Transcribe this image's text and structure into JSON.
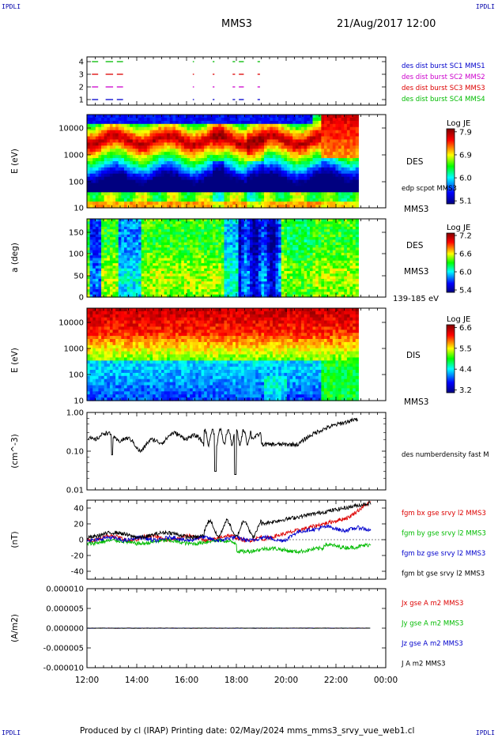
{
  "corners": {
    "top_left": "IPDLI",
    "top_right": "IPDLI",
    "bottom_left": "IPDLI",
    "bottom_right": "IPDLI"
  },
  "header": {
    "spacecraft": "MMS3",
    "datetime": "21/Aug/2017 12:00"
  },
  "footer": "Produced by cl (IRAP)   Printing date: 02/May/2024   mms_mms3_srvy_vue_web1.cl",
  "colors": {
    "sc1": "#0000cc",
    "sc2": "#cc00cc",
    "sc3": "#dd0000",
    "sc4": "#00bb00",
    "black": "#000000"
  },
  "chart_data": [
    {
      "type": "line",
      "id": "burst",
      "yticks": [
        "4",
        "3",
        "2",
        "1"
      ],
      "legend": [
        {
          "label": "des dist burst SC1 MMS1",
          "color": "#0000cc"
        },
        {
          "label": "des dist burst SC2 MMS2",
          "color": "#cc00cc"
        },
        {
          "label": "des dist burst SC3 MMS3",
          "color": "#dd0000"
        },
        {
          "label": "des dist burst SC4 MMS4",
          "color": "#00bb00"
        }
      ],
      "intervals_hours": [
        [
          12.2,
          12.45
        ],
        [
          12.75,
          13.05
        ],
        [
          13.2,
          13.45
        ],
        [
          16.25,
          16.3
        ],
        [
          17.05,
          17.12
        ],
        [
          17.85,
          17.95
        ],
        [
          18.1,
          18.3
        ],
        [
          18.85,
          18.95
        ]
      ]
    },
    {
      "type": "heatmap",
      "id": "des-energy",
      "ylabel": "E (eV)",
      "yticks": [
        "10000",
        "1000",
        "100",
        "10"
      ],
      "right_labels": [
        "DES",
        "edp scpot MMS3",
        "MMS3"
      ],
      "colorbar": {
        "title": "Log JE",
        "ticks": [
          "7.9",
          "6.9",
          "6.0",
          "5.1"
        ]
      }
    },
    {
      "type": "heatmap",
      "id": "des-pitch",
      "ylabel": "a (deg)",
      "yticks": [
        "150",
        "100",
        "50",
        "0"
      ],
      "right_labels": [
        "DES",
        "MMS3",
        "139-185 eV"
      ],
      "colorbar": {
        "title": "Log JE",
        "ticks": [
          "7.2",
          "6.6",
          "6.0",
          "5.4"
        ]
      }
    },
    {
      "type": "heatmap",
      "id": "dis-energy",
      "ylabel": "E (eV)",
      "yticks": [
        "10000",
        "1000",
        "100",
        "10"
      ],
      "right_labels": [
        "DIS",
        "MMS3"
      ],
      "colorbar": {
        "title": "Log JE",
        "ticks": [
          "6.6",
          "5.5",
          "4.4",
          "3.2"
        ]
      }
    },
    {
      "type": "line",
      "id": "density",
      "ylabel": "(cm^-3)",
      "yscale": "log",
      "ylim": [
        0.01,
        1.0
      ],
      "yticks": [
        "1.00",
        "0.10",
        "0.01"
      ],
      "series": [
        {
          "name": "des numberdensity fast M",
          "color": "#000000"
        }
      ]
    },
    {
      "type": "line",
      "id": "bfield",
      "ylabel": "(nT)",
      "ylim": [
        -50,
        50
      ],
      "yticks": [
        "40",
        "20",
        "0",
        "-20",
        "-40"
      ],
      "series": [
        {
          "name": "fgm bx gse srvy l2 MMS3",
          "color": "#dd0000"
        },
        {
          "name": "fgm by gse srvy l2 MMS3",
          "color": "#00bb00"
        },
        {
          "name": "fgm bz gse srvy l2 MMS3",
          "color": "#0000cc"
        },
        {
          "name": "fgm bt gse srvy l2 MMS3",
          "color": "#000000"
        }
      ]
    },
    {
      "type": "line",
      "id": "current",
      "ylabel": "(A/m2)",
      "ylim": [
        -1e-05,
        1e-05
      ],
      "yticks": [
        "0.000010",
        "0.000005",
        "0.000000",
        "-0.000005",
        "-0.000010"
      ],
      "series": [
        {
          "name": "Jx gse A m2 MMS3",
          "color": "#dd0000"
        },
        {
          "name": "Jy gse A m2 MMS3",
          "color": "#00bb00"
        },
        {
          "name": "Jz gse A m2 MMS3",
          "color": "#0000cc"
        },
        {
          "name": "J A m2 MMS3",
          "color": "#000000"
        }
      ]
    }
  ],
  "xaxis": {
    "ticks": [
      "12:00",
      "14:00",
      "16:00",
      "18:00",
      "20:00",
      "22:00",
      "00:00"
    ],
    "range_hours": [
      12,
      24
    ]
  }
}
